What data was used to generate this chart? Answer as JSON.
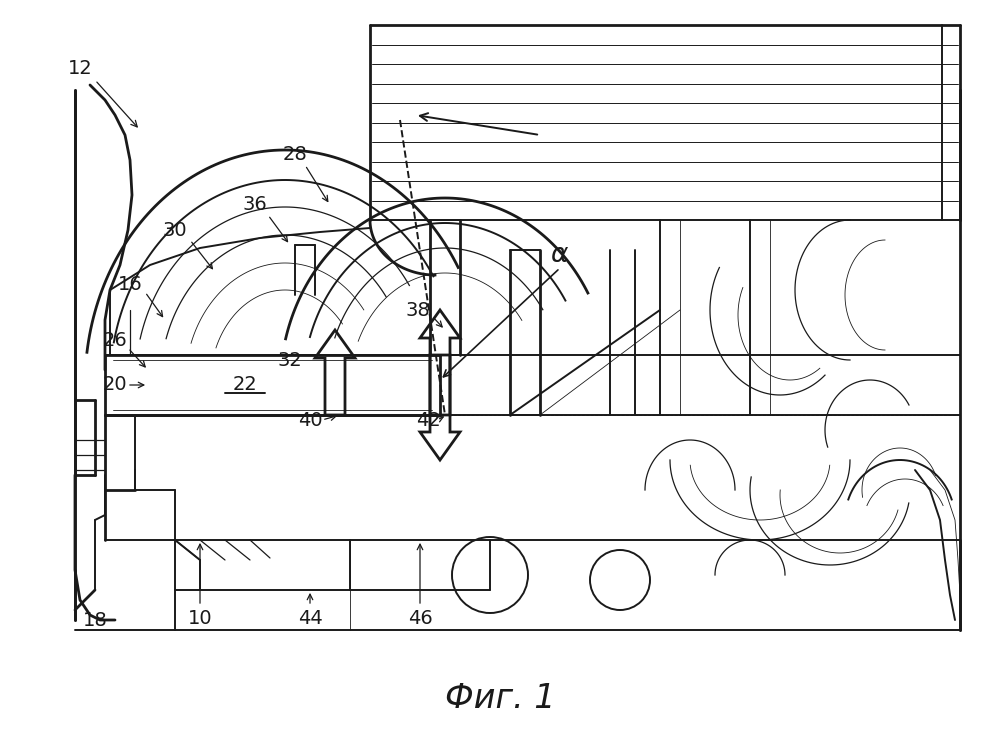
{
  "bg_color": "#ffffff",
  "line_color": "#1a1a1a",
  "fig_width": 10.0,
  "fig_height": 7.38,
  "dpi": 100,
  "caption": "Фиг. 1",
  "caption_fontsize": 24,
  "label_fontsize": 14,
  "lw_heavy": 2.0,
  "lw_med": 1.4,
  "lw_light": 0.9,
  "lw_thin": 0.6
}
